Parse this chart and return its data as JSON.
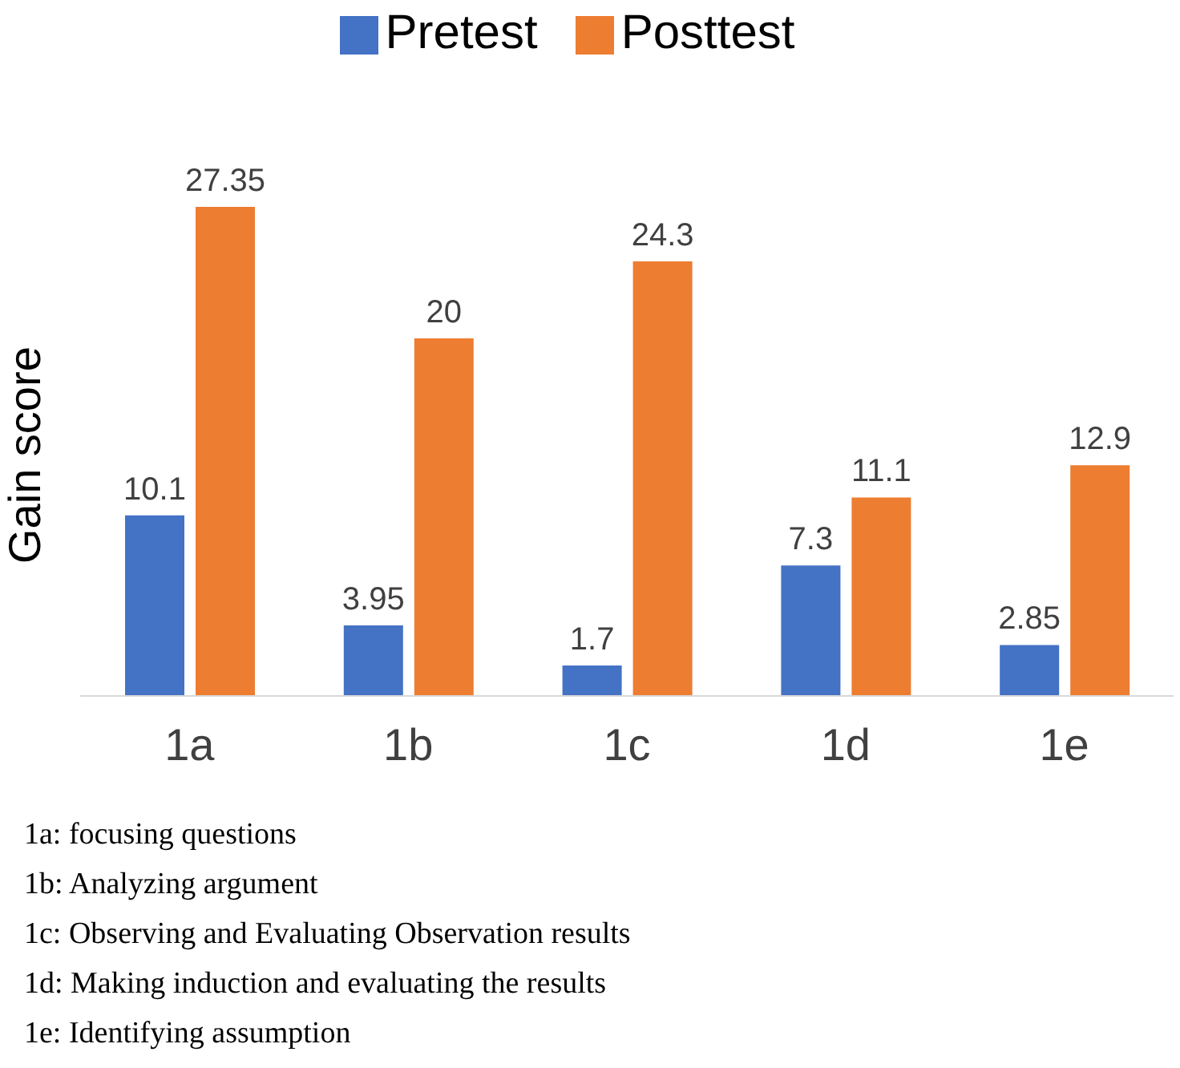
{
  "chart_data": {
    "type": "bar",
    "ylabel": "Gain score",
    "categories": [
      "1a",
      "1b",
      "1c",
      "1d",
      "1e"
    ],
    "series": [
      {
        "name": "Pretest",
        "color": "#4472c4",
        "values": [
          10.1,
          3.95,
          1.7,
          7.3,
          2.85
        ]
      },
      {
        "name": "Posttest",
        "color": "#ed7d31",
        "values": [
          27.35,
          20,
          24.3,
          11.1,
          12.9
        ]
      }
    ],
    "data_labels": true,
    "legend": "top",
    "annotations": [
      "1a: focusing questions",
      "1b: Analyzing argument",
      "1c: Observing and Evaluating Observation results",
      "1d: Making induction and evaluating the results",
      "1e: Identifying assumption"
    ]
  }
}
